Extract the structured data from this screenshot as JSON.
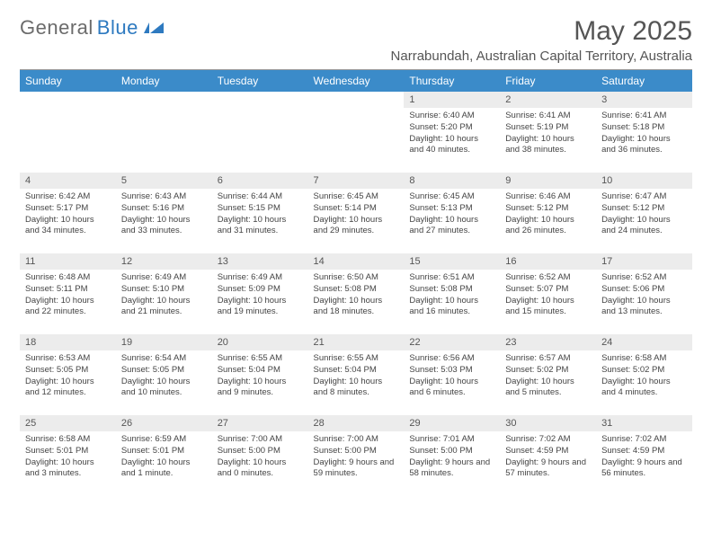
{
  "logo": {
    "text1": "General",
    "text2": "Blue"
  },
  "header": {
    "month_title": "May 2025",
    "location": "Narrabundah, Australian Capital Territory, Australia"
  },
  "colors": {
    "header_bg": "#3b8bc9",
    "header_text": "#ffffff",
    "daynum_bg": "#ececec",
    "logo_gray": "#6b6b6b",
    "logo_blue": "#2e7ac0"
  },
  "weekdays": [
    "Sunday",
    "Monday",
    "Tuesday",
    "Wednesday",
    "Thursday",
    "Friday",
    "Saturday"
  ],
  "weeks": [
    [
      null,
      null,
      null,
      null,
      {
        "n": "1",
        "sr": "Sunrise: 6:40 AM",
        "ss": "Sunset: 5:20 PM",
        "dl": "Daylight: 10 hours and 40 minutes."
      },
      {
        "n": "2",
        "sr": "Sunrise: 6:41 AM",
        "ss": "Sunset: 5:19 PM",
        "dl": "Daylight: 10 hours and 38 minutes."
      },
      {
        "n": "3",
        "sr": "Sunrise: 6:41 AM",
        "ss": "Sunset: 5:18 PM",
        "dl": "Daylight: 10 hours and 36 minutes."
      }
    ],
    [
      {
        "n": "4",
        "sr": "Sunrise: 6:42 AM",
        "ss": "Sunset: 5:17 PM",
        "dl": "Daylight: 10 hours and 34 minutes."
      },
      {
        "n": "5",
        "sr": "Sunrise: 6:43 AM",
        "ss": "Sunset: 5:16 PM",
        "dl": "Daylight: 10 hours and 33 minutes."
      },
      {
        "n": "6",
        "sr": "Sunrise: 6:44 AM",
        "ss": "Sunset: 5:15 PM",
        "dl": "Daylight: 10 hours and 31 minutes."
      },
      {
        "n": "7",
        "sr": "Sunrise: 6:45 AM",
        "ss": "Sunset: 5:14 PM",
        "dl": "Daylight: 10 hours and 29 minutes."
      },
      {
        "n": "8",
        "sr": "Sunrise: 6:45 AM",
        "ss": "Sunset: 5:13 PM",
        "dl": "Daylight: 10 hours and 27 minutes."
      },
      {
        "n": "9",
        "sr": "Sunrise: 6:46 AM",
        "ss": "Sunset: 5:12 PM",
        "dl": "Daylight: 10 hours and 26 minutes."
      },
      {
        "n": "10",
        "sr": "Sunrise: 6:47 AM",
        "ss": "Sunset: 5:12 PM",
        "dl": "Daylight: 10 hours and 24 minutes."
      }
    ],
    [
      {
        "n": "11",
        "sr": "Sunrise: 6:48 AM",
        "ss": "Sunset: 5:11 PM",
        "dl": "Daylight: 10 hours and 22 minutes."
      },
      {
        "n": "12",
        "sr": "Sunrise: 6:49 AM",
        "ss": "Sunset: 5:10 PM",
        "dl": "Daylight: 10 hours and 21 minutes."
      },
      {
        "n": "13",
        "sr": "Sunrise: 6:49 AM",
        "ss": "Sunset: 5:09 PM",
        "dl": "Daylight: 10 hours and 19 minutes."
      },
      {
        "n": "14",
        "sr": "Sunrise: 6:50 AM",
        "ss": "Sunset: 5:08 PM",
        "dl": "Daylight: 10 hours and 18 minutes."
      },
      {
        "n": "15",
        "sr": "Sunrise: 6:51 AM",
        "ss": "Sunset: 5:08 PM",
        "dl": "Daylight: 10 hours and 16 minutes."
      },
      {
        "n": "16",
        "sr": "Sunrise: 6:52 AM",
        "ss": "Sunset: 5:07 PM",
        "dl": "Daylight: 10 hours and 15 minutes."
      },
      {
        "n": "17",
        "sr": "Sunrise: 6:52 AM",
        "ss": "Sunset: 5:06 PM",
        "dl": "Daylight: 10 hours and 13 minutes."
      }
    ],
    [
      {
        "n": "18",
        "sr": "Sunrise: 6:53 AM",
        "ss": "Sunset: 5:05 PM",
        "dl": "Daylight: 10 hours and 12 minutes."
      },
      {
        "n": "19",
        "sr": "Sunrise: 6:54 AM",
        "ss": "Sunset: 5:05 PM",
        "dl": "Daylight: 10 hours and 10 minutes."
      },
      {
        "n": "20",
        "sr": "Sunrise: 6:55 AM",
        "ss": "Sunset: 5:04 PM",
        "dl": "Daylight: 10 hours and 9 minutes."
      },
      {
        "n": "21",
        "sr": "Sunrise: 6:55 AM",
        "ss": "Sunset: 5:04 PM",
        "dl": "Daylight: 10 hours and 8 minutes."
      },
      {
        "n": "22",
        "sr": "Sunrise: 6:56 AM",
        "ss": "Sunset: 5:03 PM",
        "dl": "Daylight: 10 hours and 6 minutes."
      },
      {
        "n": "23",
        "sr": "Sunrise: 6:57 AM",
        "ss": "Sunset: 5:02 PM",
        "dl": "Daylight: 10 hours and 5 minutes."
      },
      {
        "n": "24",
        "sr": "Sunrise: 6:58 AM",
        "ss": "Sunset: 5:02 PM",
        "dl": "Daylight: 10 hours and 4 minutes."
      }
    ],
    [
      {
        "n": "25",
        "sr": "Sunrise: 6:58 AM",
        "ss": "Sunset: 5:01 PM",
        "dl": "Daylight: 10 hours and 3 minutes."
      },
      {
        "n": "26",
        "sr": "Sunrise: 6:59 AM",
        "ss": "Sunset: 5:01 PM",
        "dl": "Daylight: 10 hours and 1 minute."
      },
      {
        "n": "27",
        "sr": "Sunrise: 7:00 AM",
        "ss": "Sunset: 5:00 PM",
        "dl": "Daylight: 10 hours and 0 minutes."
      },
      {
        "n": "28",
        "sr": "Sunrise: 7:00 AM",
        "ss": "Sunset: 5:00 PM",
        "dl": "Daylight: 9 hours and 59 minutes."
      },
      {
        "n": "29",
        "sr": "Sunrise: 7:01 AM",
        "ss": "Sunset: 5:00 PM",
        "dl": "Daylight: 9 hours and 58 minutes."
      },
      {
        "n": "30",
        "sr": "Sunrise: 7:02 AM",
        "ss": "Sunset: 4:59 PM",
        "dl": "Daylight: 9 hours and 57 minutes."
      },
      {
        "n": "31",
        "sr": "Sunrise: 7:02 AM",
        "ss": "Sunset: 4:59 PM",
        "dl": "Daylight: 9 hours and 56 minutes."
      }
    ]
  ]
}
